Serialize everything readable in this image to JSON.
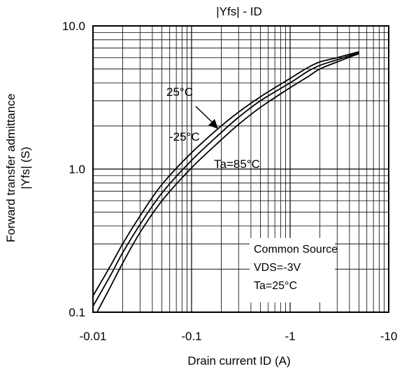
{
  "chart_data": {
    "type": "line",
    "title": "|Yfs| - ID",
    "xlabel": "Drain current ID (A)",
    "ylabel_line1": "Forward transfer admittance",
    "ylabel_line2": "|Yfs| (S)",
    "xscale": "log",
    "yscale": "log",
    "xlim": [
      -0.01,
      -10
    ],
    "ylim": [
      0.1,
      10.0
    ],
    "grid": true,
    "x_ticks": [
      "-0.01",
      "-0.1",
      "-1",
      "-10"
    ],
    "y_ticks": [
      "0.1",
      "1.0",
      "10.0"
    ],
    "series": [
      {
        "name": "-25°C",
        "x": [
          -0.01,
          -0.015,
          -0.02,
          -0.03,
          -0.05,
          -0.1,
          -0.2,
          -0.3,
          -0.5,
          -1,
          -1.5,
          -2,
          -3,
          -5
        ],
        "y": [
          0.13,
          0.21,
          0.3,
          0.47,
          0.78,
          1.3,
          2.0,
          2.5,
          3.2,
          4.3,
          5.1,
          5.6,
          6.0,
          6.6
        ]
      },
      {
        "name": "25°C",
        "x": [
          -0.01,
          -0.015,
          -0.02,
          -0.03,
          -0.05,
          -0.1,
          -0.2,
          -0.3,
          -0.5,
          -1,
          -1.5,
          -2,
          -3,
          -5
        ],
        "y": [
          0.11,
          0.18,
          0.26,
          0.41,
          0.68,
          1.15,
          1.8,
          2.3,
          3.0,
          4.0,
          4.8,
          5.3,
          5.8,
          6.5
        ]
      },
      {
        "name": "Ta=85°C",
        "x": [
          -0.011,
          -0.015,
          -0.02,
          -0.03,
          -0.05,
          -0.1,
          -0.2,
          -0.3,
          -0.5,
          -1,
          -1.5,
          -2,
          -3,
          -5
        ],
        "y": [
          0.1,
          0.15,
          0.22,
          0.36,
          0.6,
          1.02,
          1.6,
          2.05,
          2.7,
          3.7,
          4.4,
          5.0,
          5.6,
          6.4
        ]
      }
    ],
    "annotations": [
      "25°C",
      "-25°C",
      "Ta=85°C"
    ],
    "conditions": [
      "Common Source",
      "VDS=-3V",
      "Ta=25°C"
    ]
  }
}
